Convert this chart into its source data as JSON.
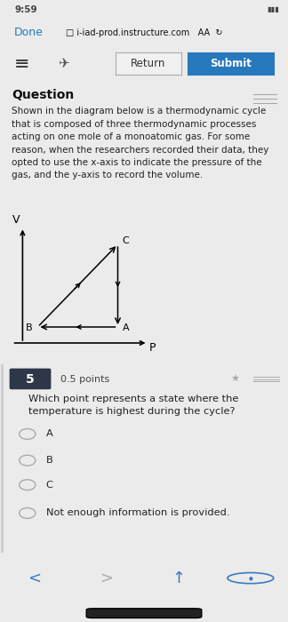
{
  "bg_color": "#ebebeb",
  "status_bar_bg": "#f2f2f2",
  "status_bar_text": "9:59",
  "browser_bar_bg": "#f2f2f2",
  "done_text": "Done",
  "url_text": "i-iad-prod.instructure.com",
  "aa_text": "AA",
  "return_btn_text": "Return",
  "submit_btn_text": "Submit",
  "submit_btn_color": "#2779bd",
  "toolbar_bg": "#f2f2f2",
  "content_bg": "#ebebeb",
  "question_label": "Question",
  "question_text": "Shown in the diagram below is a thermodynamic cycle\nthat is composed of three thermodynamic processes\nacting on one mole of a monoatomic gas. For some\nreason, when the researchers recorded their data, they\nopted to use the x-axis to indicate the pressure of the\ngas, and the y-axis to record the volume.",
  "x_label": "P",
  "y_label": "V",
  "question_number": "5",
  "points_text": "0.5 points",
  "question5_text": "Which point represents a state where the\ntemperature is highest during the cycle?",
  "choices": [
    "A",
    "B",
    "C",
    "Not enough information is provided."
  ],
  "q5_bg": "#ffffff",
  "nav_bg": "#f2f2f2",
  "nav_color": "#3a7bbf",
  "badge_color": "#2d3748",
  "divider_color": "#cccccc"
}
